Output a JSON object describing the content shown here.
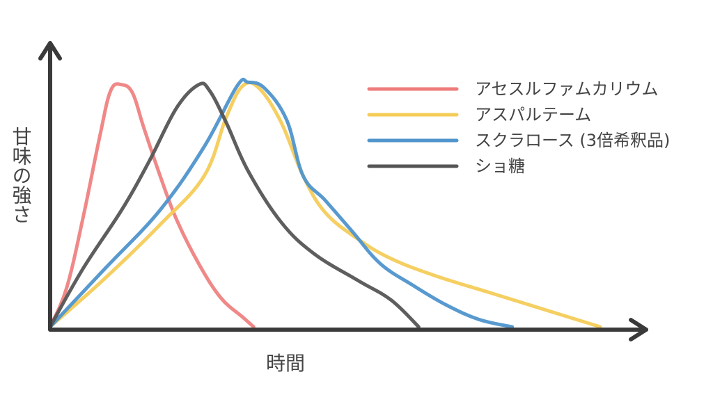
{
  "chart_data": {
    "type": "line",
    "xlabel": "時間",
    "ylabel": "甘味の強さ",
    "grid": false,
    "legend_position": "top-right",
    "x_range": [
      0,
      100
    ],
    "y_range": [
      0,
      100
    ],
    "series": [
      {
        "name": "アセスルファムカリウム",
        "color": "#ee7b7b",
        "opacity": 0.9,
        "points": [
          [
            0,
            0
          ],
          [
            3,
            16
          ],
          [
            6,
            45
          ],
          [
            9,
            78
          ],
          [
            11,
            97
          ],
          [
            13,
            99.5
          ],
          [
            15,
            96
          ],
          [
            17,
            82
          ],
          [
            20,
            62
          ],
          [
            23,
            44
          ],
          [
            27,
            26
          ],
          [
            31,
            12
          ],
          [
            35,
            4
          ],
          [
            37,
            0
          ]
        ]
      },
      {
        "name": "アスパルテーム",
        "color": "#f4cc58",
        "opacity": 0.95,
        "points": [
          [
            0,
            0
          ],
          [
            10,
            20
          ],
          [
            20,
            42
          ],
          [
            28,
            62
          ],
          [
            32,
            86
          ],
          [
            35,
            99
          ],
          [
            38,
            98
          ],
          [
            42,
            84
          ],
          [
            46,
            62
          ],
          [
            50,
            47
          ],
          [
            56,
            36
          ],
          [
            62,
            28
          ],
          [
            70,
            21
          ],
          [
            80,
            14
          ],
          [
            90,
            7
          ],
          [
            100,
            0
          ]
        ]
      },
      {
        "name": "スクラロース (3倍希釈品)",
        "color": "#4f95cc",
        "opacity": 0.95,
        "points": [
          [
            0,
            0
          ],
          [
            10,
            24
          ],
          [
            20,
            48
          ],
          [
            28,
            74
          ],
          [
            34,
            99
          ],
          [
            36,
            100.5
          ],
          [
            39,
            98
          ],
          [
            43,
            85
          ],
          [
            46,
            62
          ],
          [
            50,
            52
          ],
          [
            55,
            39
          ],
          [
            60,
            26
          ],
          [
            66,
            17
          ],
          [
            72,
            9
          ],
          [
            78,
            3
          ],
          [
            84,
            0
          ]
        ]
      },
      {
        "name": "ショ糖",
        "color": "#555555",
        "opacity": 0.95,
        "points": [
          [
            0,
            0
          ],
          [
            6,
            24
          ],
          [
            13,
            48
          ],
          [
            18,
            68
          ],
          [
            23,
            90
          ],
          [
            27,
            99.5
          ],
          [
            29,
            97
          ],
          [
            32,
            84
          ],
          [
            36,
            64
          ],
          [
            42,
            43
          ],
          [
            48,
            30
          ],
          [
            56,
            19
          ],
          [
            62,
            11
          ],
          [
            67,
            0
          ]
        ]
      }
    ]
  }
}
